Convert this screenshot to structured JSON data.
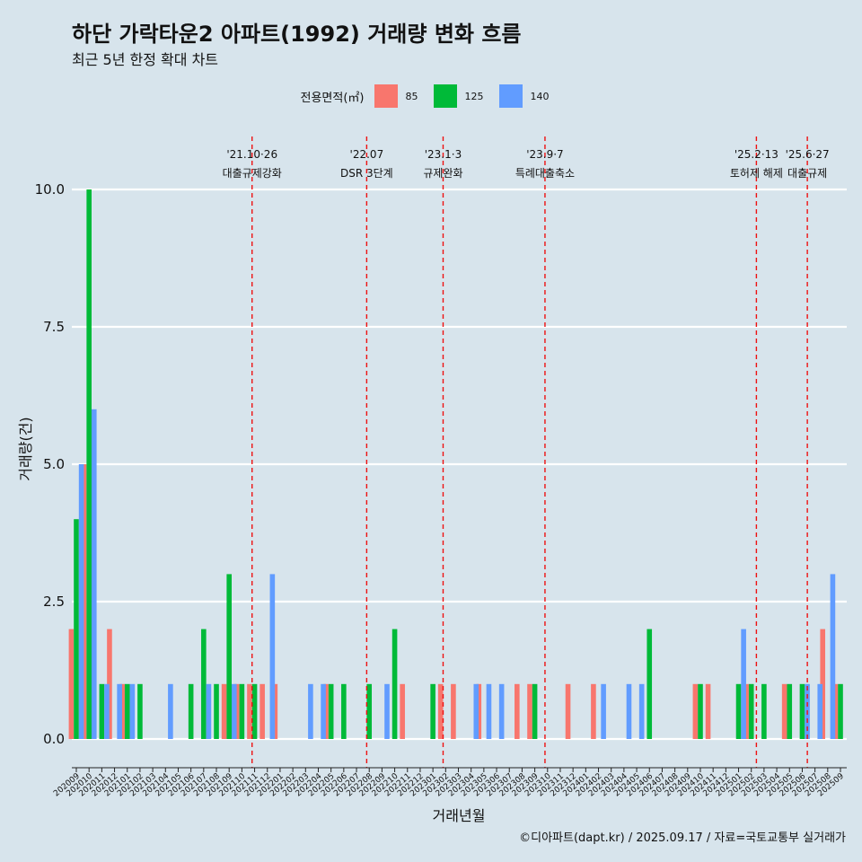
{
  "title": "하단 가락타운2 아파트(1992) 거래량 변화 흐름",
  "subtitle": "최근 5년 한정 확대 차트",
  "caption": "©디아파트(dapt.kr) / 2025.09.17 / 자료=국토교통부 실거래가",
  "colors": {
    "background": "#d7e4ec",
    "85": "#f8766d",
    "125": "#00ba38",
    "140": "#619cff",
    "event_line": "#ee1111"
  },
  "chart_data": {
    "type": "bar",
    "xlabel": "거래년월",
    "ylabel": "거래량(건)",
    "ylim": [
      0,
      10
    ],
    "yticks": [
      0.0,
      2.5,
      5.0,
      7.5,
      10.0
    ],
    "ytick_labels": [
      "0.0",
      "2.5",
      "5.0",
      "7.5",
      "10.0"
    ],
    "grid": true,
    "legend": {
      "title": "전용면적(㎡)",
      "position": "top",
      "entries": [
        "85",
        "125",
        "140"
      ]
    },
    "categories": [
      "202009",
      "202010",
      "202011",
      "202012",
      "202101",
      "202102",
      "202103",
      "202104",
      "202105",
      "202106",
      "202107",
      "202108",
      "202109",
      "202110",
      "202111",
      "202112",
      "202201",
      "202202",
      "202203",
      "202204",
      "202205",
      "202206",
      "202207",
      "202208",
      "202209",
      "202210",
      "202211",
      "202212",
      "202301",
      "202302",
      "202303",
      "202304",
      "202305",
      "202306",
      "202307",
      "202308",
      "202309",
      "202310",
      "202311",
      "202312",
      "202401",
      "202402",
      "202403",
      "202404",
      "202405",
      "202406",
      "202407",
      "202408",
      "202409",
      "202410",
      "202411",
      "202412",
      "202501",
      "202502",
      "202503",
      "202504",
      "202505",
      "202506",
      "202507",
      "202508",
      "202509"
    ],
    "series": [
      {
        "name": "85",
        "values": [
          2,
          5,
          0,
          2,
          1,
          0,
          0,
          0,
          0,
          0,
          0,
          0,
          1,
          1,
          1,
          1,
          1,
          0,
          0,
          0,
          1,
          0,
          0,
          0,
          0,
          0,
          1,
          0,
          0,
          1,
          1,
          0,
          1,
          0,
          0,
          1,
          1,
          0,
          0,
          1,
          0,
          1,
          0,
          0,
          0,
          0,
          0,
          0,
          0,
          1,
          1,
          0,
          0,
          1,
          0,
          0,
          1,
          0,
          0,
          2,
          1
        ]
      },
      {
        "name": "125",
        "values": [
          4,
          10,
          1,
          0,
          1,
          1,
          0,
          0,
          0,
          1,
          2,
          1,
          3,
          1,
          1,
          0,
          0,
          0,
          0,
          0,
          1,
          1,
          0,
          1,
          0,
          2,
          0,
          0,
          1,
          0,
          0,
          0,
          0,
          0,
          0,
          0,
          1,
          0,
          0,
          0,
          0,
          0,
          0,
          0,
          0,
          2,
          0,
          0,
          0,
          1,
          0,
          0,
          1,
          1,
          1,
          0,
          1,
          1,
          0,
          0,
          1
        ]
      },
      {
        "name": "140",
        "values": [
          5,
          6,
          1,
          1,
          1,
          0,
          0,
          1,
          0,
          0,
          1,
          0,
          1,
          0,
          0,
          3,
          0,
          0,
          1,
          1,
          0,
          0,
          0,
          0,
          1,
          0,
          0,
          0,
          0,
          0,
          0,
          1,
          1,
          1,
          0,
          0,
          0,
          0,
          0,
          0,
          0,
          1,
          0,
          1,
          1,
          0,
          0,
          0,
          0,
          0,
          0,
          0,
          2,
          0,
          0,
          0,
          0,
          1,
          1,
          3,
          0
        ]
      }
    ],
    "events": [
      {
        "date": "'21.10·26",
        "label": "대출규제강화",
        "x": 13.8
      },
      {
        "date": "'22.07",
        "label": "DSR 3단계",
        "x": 22.8
      },
      {
        "date": "'23.1·3",
        "label": "규제완화",
        "x": 28.8
      },
      {
        "date": "'23.9·7",
        "label": "특례대출축소",
        "x": 36.8
      },
      {
        "date": "'25.2·13",
        "label": "토허제 해제",
        "x": 53.4
      },
      {
        "date": "'25.6·27",
        "label": "대출규제",
        "x": 57.4
      }
    ]
  }
}
